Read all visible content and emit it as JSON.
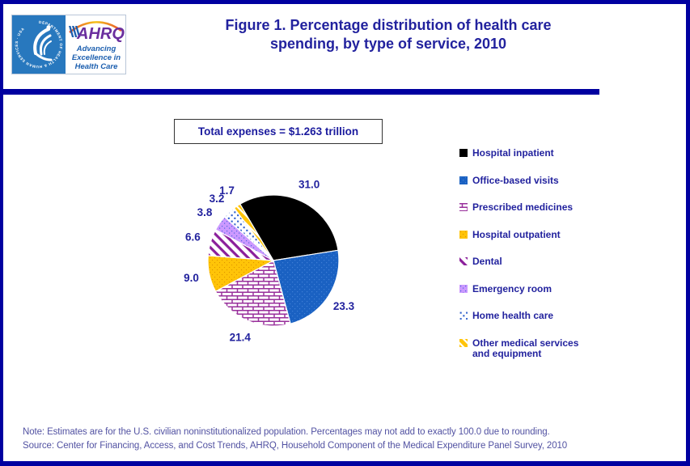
{
  "header": {
    "logo": {
      "ring_text": "DEPARTMENT OF HEALTH & HUMAN SERVICES · USA",
      "ahrq": "AHRQ",
      "tagline_lines": [
        "Advancing",
        "Excellence in",
        "Health Care"
      ]
    },
    "title_line1": "Figure 1. Percentage distribution of health care",
    "title_line2": "spending, by type of service, 2010"
  },
  "total_box": {
    "label": "Total expenses = $1.263 trillion"
  },
  "chart_data": {
    "type": "pie",
    "title": "Figure 1. Percentage distribution of health care spending, by type of service, 2010",
    "unit": "percent of total health care spending",
    "annotation": "Total expenses = $1.263 trillion",
    "start_angle_deg": -30.6,
    "direction": "clockwise",
    "legend_position": "right",
    "slices": [
      {
        "label": "Hospital inpatient",
        "value": 31.0,
        "swatch": "solid black",
        "color": "#000000"
      },
      {
        "label": "Office-based visits",
        "value": 23.3,
        "swatch": "blue with fine dots",
        "color": "#1A61C2"
      },
      {
        "label": "Prescribed medicines",
        "value": 21.4,
        "swatch": "purple brick pattern on white",
        "color": "#982F9B"
      },
      {
        "label": "Hospital outpatient",
        "value": 9.0,
        "swatch": "gold with fine dots",
        "color": "#FFC408"
      },
      {
        "label": "Dental",
        "value": 6.6,
        "swatch": "purple diagonal stripes on white",
        "color": "#8B1F9B"
      },
      {
        "label": "Emergency room",
        "value": 3.8,
        "swatch": "lavender with blue dots",
        "color": "#CC99FF"
      },
      {
        "label": "Home health care",
        "value": 3.2,
        "swatch": "blue square dots on white",
        "color": "#2E5FCC"
      },
      {
        "label": "Other medical services and equipment",
        "value": 1.7,
        "swatch": "gold with white diagonal stripe",
        "color": "#FFC408"
      }
    ]
  },
  "footer": {
    "note": "Note: Estimates are for the U.S.  civilian noninstitutionalized population. Percentages may not add to  exactly  100.0 due to rounding.",
    "source": "Source: Center for Financing, Access, and Cost Trends, AHRQ,  Household Component of the Medical Expenditure Panel Survey,  2010"
  },
  "colors": {
    "border": "#0000A0",
    "title_text": "#22229E",
    "legend_text": "#22229E",
    "note_text": "#5252A2",
    "hhs_logo_blue": "#2878BE",
    "ahrq_purple": "#6A2E9E",
    "ahrq_tagline_blue": "#1C5FAF"
  }
}
